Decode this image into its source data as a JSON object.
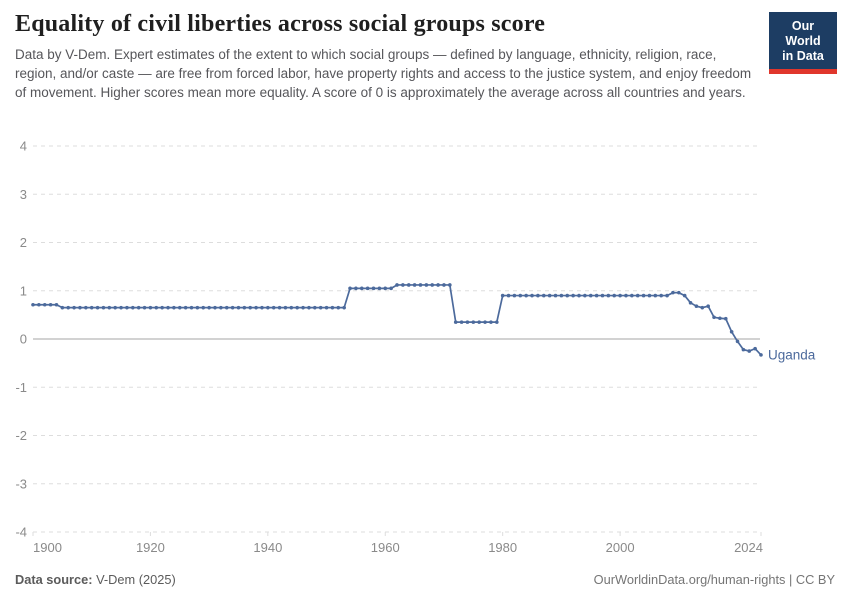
{
  "header": {
    "title": "Equality of civil liberties across social groups score",
    "subtitle": "Data by V-Dem. Expert estimates of the extent to which social groups — defined by language, ethnicity, religion, race, region, and/or caste — are free from forced labor, have property rights and access to the justice system, and enjoy freedom of movement. Higher scores mean more equality. A score of 0 is approximately the average across all countries and years.",
    "logo": {
      "line1": "Our World",
      "line2": "in Data"
    }
  },
  "footer": {
    "source_label": "Data source:",
    "source_value": " V-Dem (2025)",
    "license": "OurWorldinData.org/human-rights | CC BY"
  },
  "colors": {
    "line": "#4c6a9c",
    "grid": "#dddddd",
    "zero_line": "#a6a6a6",
    "axis_text": "#8a8a8a",
    "logo_bg": "#1d3d63",
    "logo_stripe": "#e0362c"
  },
  "chart_data": {
    "type": "line",
    "title": "Equality of civil liberties across social groups score",
    "entity": "Uganda",
    "xlabel": "",
    "ylabel": "",
    "ylim": [
      -4,
      4
    ],
    "xlim": [
      1900,
      2024
    ],
    "y_ticks": [
      4,
      3,
      2,
      1,
      0,
      -1,
      -2,
      -3,
      -4
    ],
    "x_ticks": [
      1900,
      1920,
      1940,
      1960,
      1980,
      2000,
      2024
    ],
    "grid": "horizontal-dashed, zero line solid",
    "legend_position": "end-of-line label",
    "x_start": 1900,
    "x_step": 1,
    "values": [
      0.71,
      0.71,
      0.71,
      0.71,
      0.71,
      0.65,
      0.65,
      0.65,
      0.65,
      0.65,
      0.65,
      0.65,
      0.65,
      0.65,
      0.65,
      0.65,
      0.65,
      0.65,
      0.65,
      0.65,
      0.65,
      0.65,
      0.65,
      0.65,
      0.65,
      0.65,
      0.65,
      0.65,
      0.65,
      0.65,
      0.65,
      0.65,
      0.65,
      0.65,
      0.65,
      0.65,
      0.65,
      0.65,
      0.65,
      0.65,
      0.65,
      0.65,
      0.65,
      0.65,
      0.65,
      0.65,
      0.65,
      0.65,
      0.65,
      0.65,
      0.65,
      0.65,
      0.65,
      0.65,
      1.05,
      1.05,
      1.05,
      1.05,
      1.05,
      1.05,
      1.05,
      1.05,
      1.12,
      1.12,
      1.12,
      1.12,
      1.12,
      1.12,
      1.12,
      1.12,
      1.12,
      1.12,
      0.35,
      0.35,
      0.35,
      0.35,
      0.35,
      0.35,
      0.35,
      0.35,
      0.9,
      0.9,
      0.9,
      0.9,
      0.9,
      0.9,
      0.9,
      0.9,
      0.9,
      0.9,
      0.9,
      0.9,
      0.9,
      0.9,
      0.9,
      0.9,
      0.9,
      0.9,
      0.9,
      0.9,
      0.9,
      0.9,
      0.9,
      0.9,
      0.9,
      0.9,
      0.9,
      0.9,
      0.9,
      0.96,
      0.96,
      0.9,
      0.75,
      0.68,
      0.65,
      0.68,
      0.45,
      0.43,
      0.42,
      0.15,
      -0.05,
      -0.22,
      -0.25,
      -0.2,
      -0.33
    ],
    "segments": [
      {
        "from": 1900,
        "to": 1904,
        "value": 0.71
      },
      {
        "from": 1905,
        "to": 1953,
        "value": 0.65
      },
      {
        "from": 1954,
        "to": 1961,
        "value": 1.05
      },
      {
        "from": 1962,
        "to": 1971,
        "value": 1.12
      },
      {
        "from": 1972,
        "to": 1979,
        "value": 0.35
      },
      {
        "from": 1980,
        "to": 2008,
        "value": 0.9
      },
      {
        "from": 2009,
        "to": 2010,
        "value": 0.96
      },
      {
        "from": 2011,
        "to": 2011,
        "value": 0.9
      },
      {
        "from": 2012,
        "to": 2012,
        "value": 0.75
      },
      {
        "from": 2013,
        "to": 2013,
        "value": 0.68
      },
      {
        "from": 2014,
        "to": 2014,
        "value": 0.65
      },
      {
        "from": 2015,
        "to": 2015,
        "value": 0.68
      },
      {
        "from": 2016,
        "to": 2016,
        "value": 0.45
      },
      {
        "from": 2017,
        "to": 2017,
        "value": 0.43
      },
      {
        "from": 2018,
        "to": 2018,
        "value": 0.42
      },
      {
        "from": 2019,
        "to": 2019,
        "value": 0.15
      },
      {
        "from": 2020,
        "to": 2020,
        "value": -0.05
      },
      {
        "from": 2021,
        "to": 2021,
        "value": -0.22
      },
      {
        "from": 2022,
        "to": 2022,
        "value": -0.25
      },
      {
        "from": 2023,
        "to": 2023,
        "value": -0.2
      },
      {
        "from": 2024,
        "to": 2024,
        "value": -0.33
      }
    ]
  }
}
